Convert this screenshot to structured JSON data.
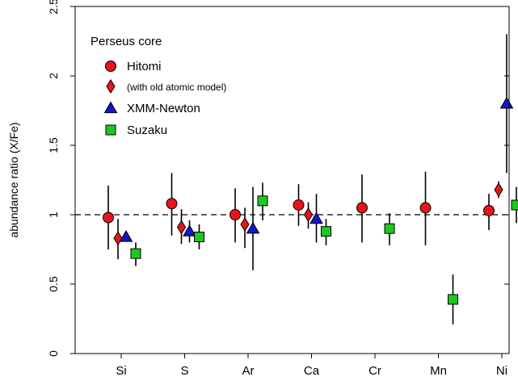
{
  "chart_data": {
    "type": "scatter",
    "ylabel": "abundance ratio (X/Fe)",
    "xlabel": "",
    "categories": [
      "Si",
      "S",
      "Ar",
      "Ca",
      "Cr",
      "Mn",
      "Ni"
    ],
    "ylim": [
      0,
      2.5
    ],
    "yticks": [
      "0",
      "0.5",
      "1",
      "1.5",
      "2",
      "2.5"
    ],
    "reference_line": 1.0,
    "legend_title": "Perseus core",
    "legend_position": "top-left",
    "grid": false,
    "series": [
      {
        "name": "Hitomi",
        "marker": "circle",
        "color": "#e8141c",
        "points": [
          {
            "x": "Si",
            "y": 0.98,
            "ylow": 0.75,
            "yhigh": 1.21
          },
          {
            "x": "S",
            "y": 1.08,
            "ylow": 0.85,
            "yhigh": 1.3
          },
          {
            "x": "Ar",
            "y": 1.0,
            "ylow": 0.8,
            "yhigh": 1.19
          },
          {
            "x": "Ca",
            "y": 1.07,
            "ylow": 0.92,
            "yhigh": 1.22
          },
          {
            "x": "Cr",
            "y": 1.05,
            "ylow": 0.8,
            "yhigh": 1.29
          },
          {
            "x": "Mn",
            "y": 1.05,
            "ylow": 0.78,
            "yhigh": 1.31
          },
          {
            "x": "Ni",
            "y": 1.03,
            "ylow": 0.89,
            "yhigh": 1.15
          }
        ]
      },
      {
        "name": "(with old atomic model)",
        "marker": "diamond",
        "color": "#e8141c",
        "points": [
          {
            "x": "Si",
            "y": 0.83,
            "ylow": 0.68,
            "yhigh": 0.97
          },
          {
            "x": "S",
            "y": 0.91,
            "ylow": 0.79,
            "yhigh": 1.04
          },
          {
            "x": "Ar",
            "y": 0.93,
            "ylow": 0.76,
            "yhigh": 1.05
          },
          {
            "x": "Ca",
            "y": 1.0,
            "ylow": 0.9,
            "yhigh": 1.09
          },
          {
            "x": "Ni",
            "y": 1.18,
            "ylow": 1.12,
            "yhigh": 1.24
          }
        ]
      },
      {
        "name": "XMM-Newton",
        "marker": "triangle",
        "color": "#1414c8",
        "points": [
          {
            "x": "Si",
            "y": 0.84,
            "ylow": 0.81,
            "yhigh": 0.87
          },
          {
            "x": "S",
            "y": 0.88,
            "ylow": 0.8,
            "yhigh": 0.96
          },
          {
            "x": "Ar",
            "y": 0.9,
            "ylow": 0.6,
            "yhigh": 1.2
          },
          {
            "x": "Ca",
            "y": 0.97,
            "ylow": 0.8,
            "yhigh": 1.15
          },
          {
            "x": "Ni",
            "y": 1.8,
            "ylow": 1.3,
            "yhigh": 2.3
          }
        ]
      },
      {
        "name": "Suzaku",
        "marker": "square",
        "color": "#1ec81e",
        "points": [
          {
            "x": "Si",
            "y": 0.72,
            "ylow": 0.63,
            "yhigh": 0.8
          },
          {
            "x": "S",
            "y": 0.84,
            "ylow": 0.75,
            "yhigh": 0.93
          },
          {
            "x": "Ar",
            "y": 1.1,
            "ylow": 0.96,
            "yhigh": 1.23
          },
          {
            "x": "Ca",
            "y": 0.88,
            "ylow": 0.78,
            "yhigh": 0.97
          },
          {
            "x": "Cr",
            "y": 0.9,
            "ylow": 0.78,
            "yhigh": 1.01
          },
          {
            "x": "Mn",
            "y": 0.39,
            "ylow": 0.21,
            "yhigh": 0.57
          },
          {
            "x": "Ni",
            "y": 1.07,
            "ylow": 0.94,
            "yhigh": 1.2
          }
        ]
      }
    ]
  }
}
